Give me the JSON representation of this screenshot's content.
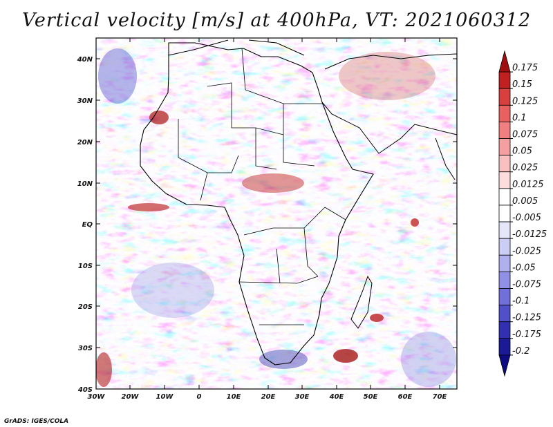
{
  "title": "Vertical velocity [m/s] at 400hPa, VT: 2021060312",
  "credit": "GrADS: IGES/COLA",
  "lat_labels": [
    "40N",
    "30N",
    "20N",
    "10N",
    "EQ",
    "10S",
    "20S",
    "30S",
    "40S"
  ],
  "lon_labels": [
    "30W",
    "20W",
    "10W",
    "0",
    "10E",
    "20E",
    "30E",
    "40E",
    "50E",
    "60E",
    "70E"
  ],
  "colorbar": {
    "labels": [
      "0.175",
      "0.15",
      "0.125",
      "0.1",
      "0.075",
      "0.05",
      "0.025",
      "0.0125",
      "0.005",
      "-0.005",
      "-0.0125",
      "-0.025",
      "-0.05",
      "-0.075",
      "-0.1",
      "-0.125",
      "-0.175",
      "-0.2"
    ],
    "colors": [
      "#a01010",
      "#c02020",
      "#d84040",
      "#e86060",
      "#f08080",
      "#f4a0a0",
      "#f8c0c0",
      "#fcdcdc",
      "#ffffff",
      "#ffffff",
      "#e6e6fa",
      "#cccdf5",
      "#b0b0ee",
      "#9090e4",
      "#7070d8",
      "#5050c8",
      "#3030b0",
      "#1a1a96",
      "#0c0c80"
    ]
  }
}
